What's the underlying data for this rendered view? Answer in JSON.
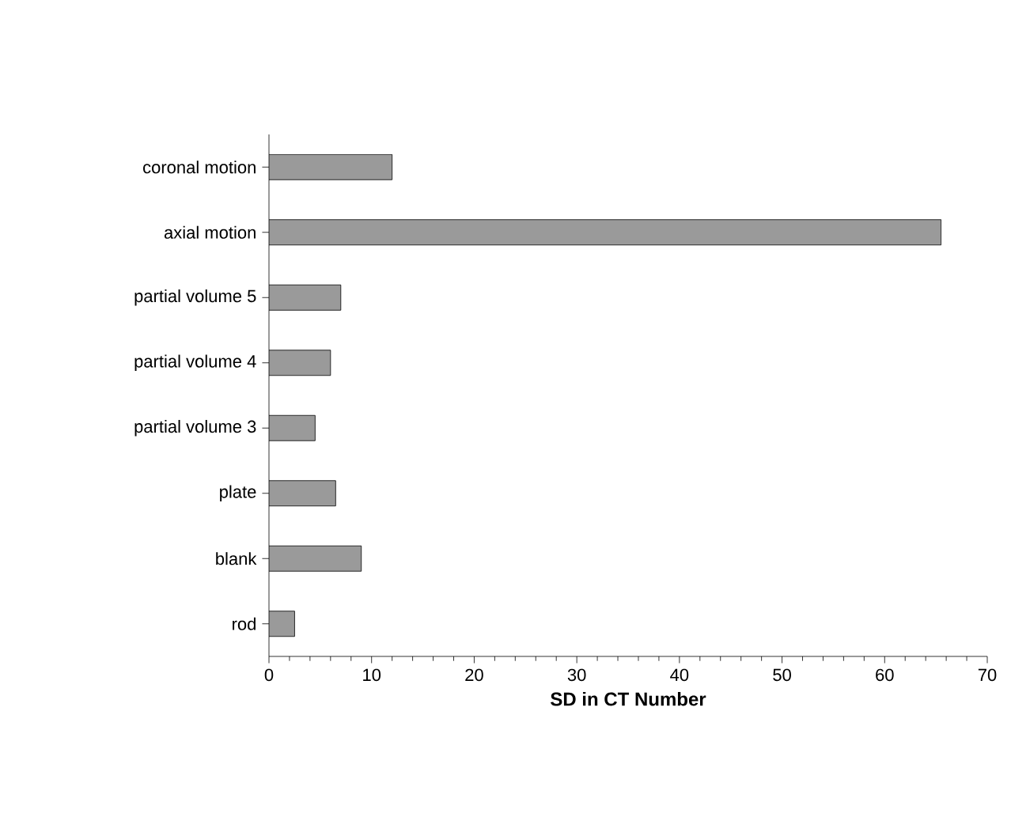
{
  "chart_data": {
    "type": "bar",
    "orientation": "horizontal",
    "xlabel": "SD in CT Number",
    "categories": [
      "coronal motion",
      "axial motion",
      "partial volume 5",
      "partial volume 4",
      "partial volume 3",
      "plate",
      "blank",
      "rod"
    ],
    "values": [
      12,
      65.5,
      7,
      6,
      4.5,
      6.5,
      9,
      2.5
    ],
    "color": "#9a9a9a",
    "xlim": [
      0,
      70
    ],
    "xticks": [
      0,
      10,
      20,
      30,
      40,
      50,
      60,
      70
    ],
    "grid": false
  }
}
